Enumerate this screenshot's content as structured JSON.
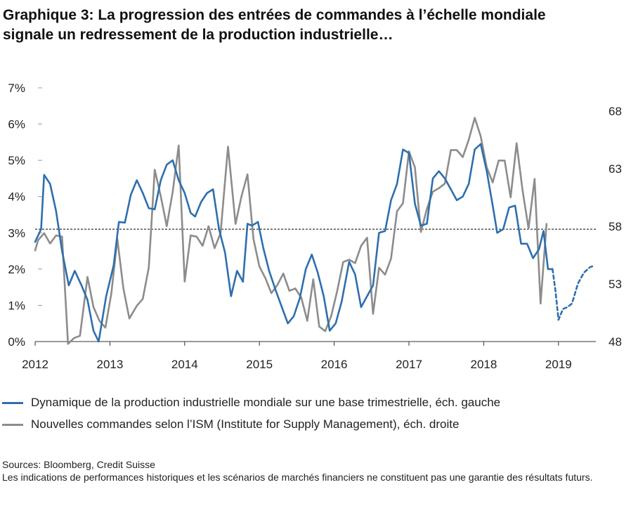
{
  "title_line1": "Graphique 3: La progression des entrées de commandes à l’échelle mondiale",
  "title_line2": "signale un redressement de la production industrielle…",
  "legend": {
    "series1": "Dynamique de la production industrielle mondiale sur une base trimestrielle, éch. gauche",
    "series2": "Nouvelles commandes selon l’ISM (Institute for Supply Management), éch. droite"
  },
  "sources": "Sources: Bloomberg, Credit Suisse",
  "disclaimer": "Les indications de performances historiques et les scénarios de marchés financiers ne constituent pas une garantie des résultats futurs.",
  "colors": {
    "production": "#2e6fad",
    "ism": "#8c8c8c",
    "reference_line": "#000000"
  },
  "chart_data": {
    "type": "line",
    "x_tick_labels": [
      "2012",
      "2013",
      "2014",
      "2015",
      "2016",
      "2017",
      "2018",
      "2019"
    ],
    "x_range": [
      2012.0,
      2019.5
    ],
    "y_left": {
      "range": [
        0,
        7
      ],
      "tick_values": [
        0,
        1,
        2,
        3,
        4,
        5,
        6,
        7
      ],
      "tick_labels": [
        "0%",
        "1%",
        "2%",
        "3%",
        "4%",
        "5%",
        "6%",
        "7%"
      ]
    },
    "y_right": {
      "range": [
        48,
        70
      ],
      "tick_values": [
        48,
        53,
        58,
        63,
        68
      ],
      "tick_labels": [
        "48",
        "53",
        "58",
        "63",
        "68"
      ]
    },
    "reference_line": {
      "axis": "left",
      "value": 3.1,
      "style": "dashed"
    },
    "series": [
      {
        "name": "Dynamique de la production industrielle mondiale sur une base trimestrielle, éch. gauche",
        "axis": "left",
        "style": "solid",
        "points": [
          [
            2012.0,
            2.75
          ],
          [
            2012.08,
            3.1
          ],
          [
            2012.12,
            4.6
          ],
          [
            2012.2,
            4.35
          ],
          [
            2012.28,
            3.6
          ],
          [
            2012.36,
            2.5
          ],
          [
            2012.45,
            1.55
          ],
          [
            2012.53,
            1.95
          ],
          [
            2012.62,
            1.55
          ],
          [
            2012.7,
            1.15
          ],
          [
            2012.78,
            0.3
          ],
          [
            2012.85,
            0.0
          ],
          [
            2012.95,
            1.25
          ],
          [
            2013.05,
            2.1
          ],
          [
            2013.12,
            3.3
          ],
          [
            2013.2,
            3.28
          ],
          [
            2013.28,
            4.05
          ],
          [
            2013.36,
            4.45
          ],
          [
            2013.44,
            4.1
          ],
          [
            2013.52,
            3.68
          ],
          [
            2013.6,
            3.65
          ],
          [
            2013.68,
            4.45
          ],
          [
            2013.76,
            4.88
          ],
          [
            2013.84,
            5.0
          ],
          [
            2013.92,
            4.45
          ],
          [
            2014.0,
            4.1
          ],
          [
            2014.08,
            3.55
          ],
          [
            2014.14,
            3.45
          ],
          [
            2014.22,
            3.85
          ],
          [
            2014.3,
            4.1
          ],
          [
            2014.38,
            4.2
          ],
          [
            2014.46,
            3.1
          ],
          [
            2014.54,
            2.45
          ],
          [
            2014.62,
            1.25
          ],
          [
            2014.7,
            1.95
          ],
          [
            2014.78,
            1.65
          ],
          [
            2014.84,
            3.25
          ],
          [
            2014.9,
            3.2
          ],
          [
            2014.98,
            3.3
          ],
          [
            2015.05,
            2.6
          ],
          [
            2015.13,
            1.95
          ],
          [
            2015.22,
            1.4
          ],
          [
            2015.3,
            0.95
          ],
          [
            2015.38,
            0.5
          ],
          [
            2015.46,
            0.7
          ],
          [
            2015.54,
            1.2
          ],
          [
            2015.62,
            2.0
          ],
          [
            2015.7,
            2.4
          ],
          [
            2015.78,
            1.9
          ],
          [
            2015.86,
            1.25
          ],
          [
            2015.94,
            0.3
          ],
          [
            2016.02,
            0.5
          ],
          [
            2016.1,
            1.1
          ],
          [
            2016.2,
            2.2
          ],
          [
            2016.28,
            1.85
          ],
          [
            2016.36,
            0.95
          ],
          [
            2016.44,
            1.25
          ],
          [
            2016.52,
            1.55
          ],
          [
            2016.6,
            3.0
          ],
          [
            2016.68,
            3.05
          ],
          [
            2016.76,
            3.9
          ],
          [
            2016.84,
            4.35
          ],
          [
            2016.92,
            5.3
          ],
          [
            2017.0,
            5.2
          ],
          [
            2017.08,
            3.8
          ],
          [
            2017.16,
            3.2
          ],
          [
            2017.24,
            3.25
          ],
          [
            2017.32,
            4.5
          ],
          [
            2017.4,
            4.7
          ],
          [
            2017.48,
            4.5
          ],
          [
            2017.56,
            4.2
          ],
          [
            2017.64,
            3.9
          ],
          [
            2017.72,
            4.0
          ],
          [
            2017.8,
            4.35
          ],
          [
            2017.88,
            5.3
          ],
          [
            2017.96,
            5.45
          ],
          [
            2018.04,
            4.7
          ],
          [
            2018.12,
            3.75
          ],
          [
            2018.18,
            3.0
          ],
          [
            2018.26,
            3.1
          ],
          [
            2018.34,
            3.7
          ],
          [
            2018.42,
            3.75
          ],
          [
            2018.5,
            2.7
          ],
          [
            2018.58,
            2.7
          ],
          [
            2018.66,
            2.3
          ],
          [
            2018.74,
            2.55
          ],
          [
            2018.8,
            3.05
          ],
          [
            2018.86,
            2.0
          ],
          [
            2018.92,
            2.0
          ]
        ]
      },
      {
        "name": "Dynamique de la production industrielle mondiale sur une base trimestrielle, éch. gauche",
        "axis": "left",
        "style": "dashed",
        "points": [
          [
            2018.92,
            2.0
          ],
          [
            2018.96,
            1.4
          ],
          [
            2019.0,
            0.6
          ],
          [
            2019.06,
            0.9
          ],
          [
            2019.12,
            0.95
          ],
          [
            2019.18,
            1.05
          ],
          [
            2019.26,
            1.6
          ],
          [
            2019.34,
            1.9
          ],
          [
            2019.42,
            2.05
          ],
          [
            2019.48,
            2.1
          ]
        ]
      },
      {
        "name": "Nouvelles commandes selon l’ISM (Institute for Supply Management), éch. droite",
        "axis": "right",
        "style": "solid",
        "points": [
          [
            2012.0,
            55.9
          ],
          [
            2012.04,
            56.8
          ],
          [
            2012.12,
            57.4
          ],
          [
            2012.2,
            56.5
          ],
          [
            2012.28,
            57.2
          ],
          [
            2012.36,
            57.1
          ],
          [
            2012.44,
            47.8
          ],
          [
            2012.52,
            48.3
          ],
          [
            2012.6,
            48.5
          ],
          [
            2012.7,
            53.6
          ],
          [
            2012.78,
            51.0
          ],
          [
            2012.86,
            49.8
          ],
          [
            2012.94,
            49.2
          ],
          [
            2013.02,
            52.2
          ],
          [
            2013.1,
            56.9
          ],
          [
            2013.18,
            52.6
          ],
          [
            2013.26,
            50.0
          ],
          [
            2013.36,
            51.1
          ],
          [
            2013.44,
            51.7
          ],
          [
            2013.52,
            54.4
          ],
          [
            2013.6,
            62.9
          ],
          [
            2013.68,
            60.6
          ],
          [
            2013.76,
            58.0
          ],
          [
            2013.84,
            61.0
          ],
          [
            2013.92,
            65.0
          ],
          [
            2014.0,
            53.2
          ],
          [
            2014.08,
            57.2
          ],
          [
            2014.16,
            57.1
          ],
          [
            2014.24,
            56.3
          ],
          [
            2014.32,
            58.0
          ],
          [
            2014.4,
            56.1
          ],
          [
            2014.48,
            57.4
          ],
          [
            2014.58,
            64.9
          ],
          [
            2014.68,
            58.2
          ],
          [
            2014.76,
            60.6
          ],
          [
            2014.84,
            62.5
          ],
          [
            2014.92,
            56.9
          ],
          [
            2015.0,
            54.5
          ],
          [
            2015.08,
            53.5
          ],
          [
            2015.16,
            52.2
          ],
          [
            2015.24,
            52.9
          ],
          [
            2015.32,
            53.9
          ],
          [
            2015.4,
            52.4
          ],
          [
            2015.48,
            52.6
          ],
          [
            2015.56,
            51.8
          ],
          [
            2015.64,
            49.8
          ],
          [
            2015.72,
            53.4
          ],
          [
            2015.8,
            49.3
          ],
          [
            2015.88,
            48.9
          ],
          [
            2015.96,
            50.2
          ],
          [
            2016.04,
            52.4
          ],
          [
            2016.12,
            54.9
          ],
          [
            2016.2,
            55.1
          ],
          [
            2016.28,
            54.8
          ],
          [
            2016.36,
            56.3
          ],
          [
            2016.44,
            57.0
          ],
          [
            2016.52,
            50.4
          ],
          [
            2016.6,
            54.4
          ],
          [
            2016.68,
            53.8
          ],
          [
            2016.76,
            55.2
          ],
          [
            2016.84,
            59.3
          ],
          [
            2016.92,
            60.0
          ],
          [
            2017.0,
            64.5
          ],
          [
            2017.08,
            63.1
          ],
          [
            2017.16,
            57.5
          ],
          [
            2017.24,
            59.5
          ],
          [
            2017.32,
            61.0
          ],
          [
            2017.4,
            61.3
          ],
          [
            2017.48,
            61.7
          ],
          [
            2017.56,
            64.6
          ],
          [
            2017.64,
            64.6
          ],
          [
            2017.72,
            64.0
          ],
          [
            2017.8,
            65.5
          ],
          [
            2017.88,
            67.4
          ],
          [
            2017.96,
            65.8
          ],
          [
            2018.04,
            63.1
          ],
          [
            2018.12,
            61.8
          ],
          [
            2018.2,
            63.7
          ],
          [
            2018.28,
            63.7
          ],
          [
            2018.36,
            60.5
          ],
          [
            2018.44,
            65.2
          ],
          [
            2018.52,
            61.1
          ],
          [
            2018.6,
            57.8
          ],
          [
            2018.68,
            62.1
          ],
          [
            2018.76,
            51.3
          ],
          [
            2018.84,
            58.2
          ]
        ]
      }
    ]
  }
}
